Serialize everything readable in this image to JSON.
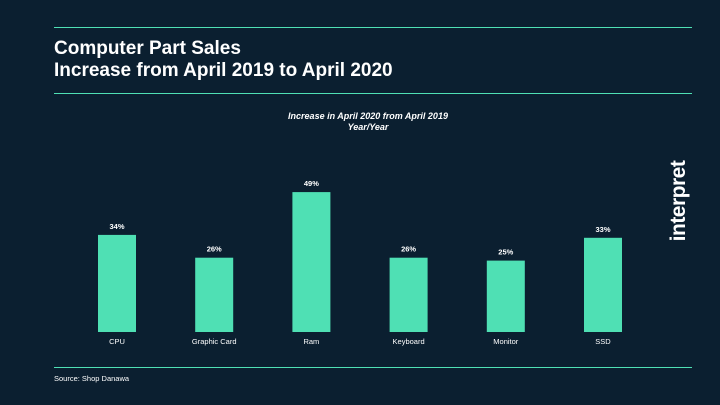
{
  "slide": {
    "title_line1": "Computer Part Sales",
    "title_line2": "Increase from April 2019 to April 2020",
    "source": "Source: Shop Danawa",
    "brand": "interpret"
  },
  "colors": {
    "background": "#0b1f30",
    "accent": "#4fe0b4",
    "text": "#ffffff"
  },
  "chart_data": {
    "type": "bar",
    "title": "Increase in April 2020 from April 2019",
    "subtitle": "Year/Year",
    "categories": [
      "CPU",
      "Graphic Card",
      "Ram",
      "Keyboard",
      "Monitor",
      "SSD"
    ],
    "values": [
      34,
      26,
      49,
      26,
      25,
      33
    ],
    "value_labels": [
      "34%",
      "26%",
      "49%",
      "26%",
      "25%",
      "33%"
    ],
    "unit": "%",
    "ylim": [
      0,
      50
    ],
    "grid": false,
    "legend": "none",
    "bar_color": "#4fe0b4"
  }
}
